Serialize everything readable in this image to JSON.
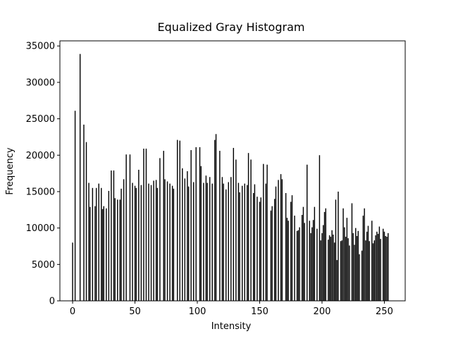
{
  "chart_data": {
    "type": "bar",
    "title": "Equalized Gray Histogram",
    "x_label": "Intensity",
    "y_label": "Frequency",
    "color": "#000000",
    "x": [
      0,
      2,
      6,
      9,
      11,
      13,
      14,
      16,
      18,
      19,
      21,
      23,
      24,
      25,
      27,
      29,
      31,
      33,
      34,
      36,
      38,
      39,
      41,
      43,
      46,
      48,
      50,
      51,
      53,
      55,
      57,
      59,
      61,
      63,
      65,
      67,
      68,
      70,
      73,
      74,
      76,
      78,
      80,
      81,
      84,
      86,
      88,
      90,
      92,
      93,
      95,
      97,
      99,
      102,
      103,
      105,
      107,
      108,
      110,
      112,
      114,
      115,
      118,
      120,
      121,
      123,
      125,
      127,
      129,
      131,
      133,
      134,
      136,
      138,
      140,
      141,
      143,
      145,
      146,
      148,
      150,
      151,
      153,
      155,
      156,
      159,
      160,
      162,
      163,
      165,
      167,
      168,
      171,
      172,
      173,
      175,
      176,
      178,
      180,
      181,
      182,
      184,
      185,
      186,
      188,
      190,
      191,
      192,
      193,
      194,
      196,
      198,
      199,
      200,
      201,
      202,
      203,
      205,
      206,
      207,
      208,
      209,
      210,
      211,
      212,
      213,
      215,
      216,
      217,
      218,
      219,
      220,
      221,
      222,
      224,
      225,
      226,
      227,
      228,
      229,
      230,
      232,
      233,
      234,
      235,
      236,
      237,
      238,
      240,
      241,
      242,
      243,
      244,
      245,
      246,
      247,
      249,
      250,
      251,
      252,
      253
    ],
    "values": [
      8000,
      26100,
      33900,
      24200,
      21800,
      16200,
      12900,
      15500,
      13000,
      15500,
      16100,
      15500,
      12600,
      13000,
      12700,
      15100,
      17900,
      17900,
      14100,
      13900,
      13900,
      15400,
      16700,
      20100,
      20100,
      16200,
      15800,
      15500,
      18000,
      15900,
      20900,
      20900,
      16100,
      15900,
      16500,
      16600,
      15500,
      19600,
      20600,
      16700,
      16400,
      16100,
      15800,
      15400,
      22100,
      22000,
      18200,
      16800,
      17800,
      15700,
      20700,
      16300,
      21100,
      21100,
      18500,
      16200,
      17200,
      16200,
      17000,
      16100,
      22100,
      22900,
      20600,
      17000,
      16100,
      15300,
      16300,
      17000,
      21000,
      19400,
      16200,
      14900,
      15800,
      16100,
      15900,
      20300,
      19400,
      14800,
      16000,
      14300,
      13600,
      14200,
      18800,
      16100,
      18700,
      12400,
      13000,
      14000,
      15700,
      16600,
      17400,
      16700,
      14800,
      11400,
      11000,
      13600,
      14500,
      11700,
      9600,
      9700,
      10100,
      11800,
      12900,
      10700,
      18700,
      11000,
      9300,
      10100,
      11100,
      12900,
      9900,
      20000,
      8300,
      9300,
      10400,
      12200,
      12700,
      8400,
      9000,
      8800,
      9700,
      9100,
      8000,
      13900,
      5600,
      15000,
      8200,
      8300,
      12700,
      10100,
      8800,
      11400,
      8600,
      7600,
      13400,
      9300,
      7700,
      10000,
      8900,
      9600,
      6400,
      6900,
      11700,
      12700,
      8300,
      9500,
      10300,
      8200,
      11000,
      7900,
      8300,
      9000,
      9500,
      9200,
      10200,
      8500,
      9900,
      9500,
      8900,
      8800,
      9300
    ],
    "xlim": [
      -10.2,
      266.7
    ],
    "ylim": [
      0,
      35700
    ],
    "xticks": [
      0,
      50,
      100,
      150,
      200,
      250
    ],
    "yticks": [
      0,
      5000,
      10000,
      15000,
      20000,
      25000,
      30000,
      35000
    ]
  }
}
